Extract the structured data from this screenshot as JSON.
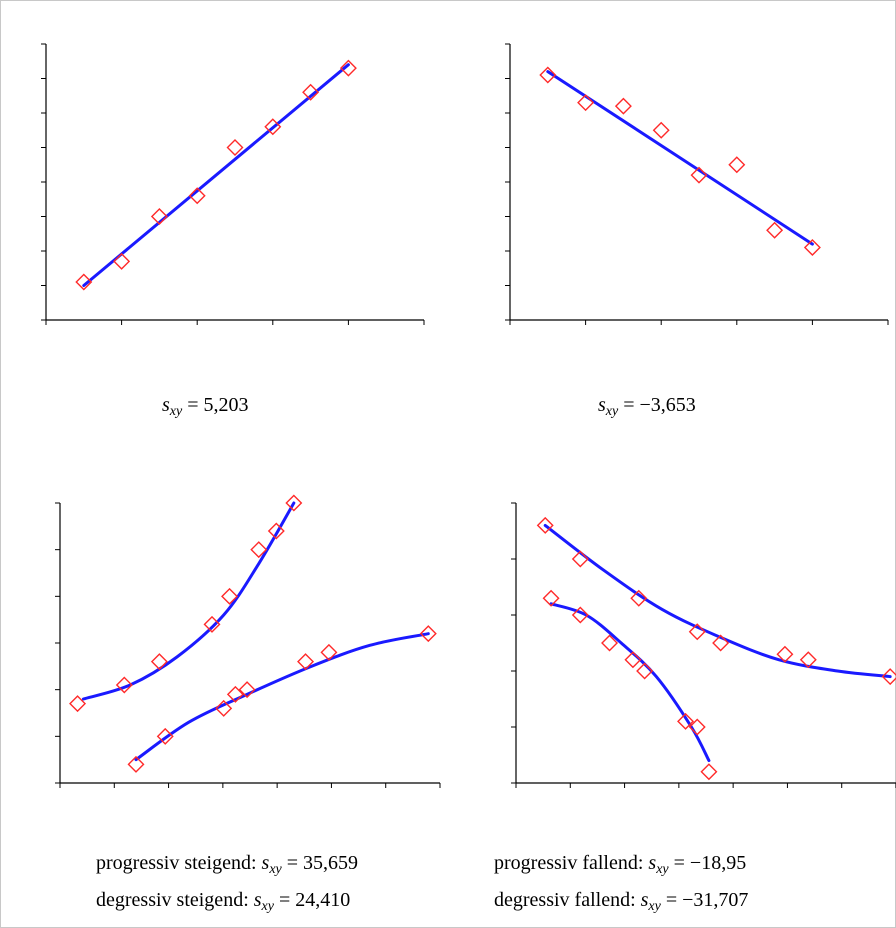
{
  "chart_data": [
    {
      "type": "scatter",
      "panel": "top-left",
      "fit_line": "linear",
      "x": [
        1,
        2,
        3,
        4,
        5,
        6,
        7,
        8
      ],
      "y": [
        1.1,
        1.7,
        3.0,
        3.6,
        5.0,
        5.6,
        6.6,
        7.3
      ],
      "fit": [
        [
          1,
          1.0
        ],
        [
          8,
          7.4
        ]
      ],
      "xlim": [
        0,
        10
      ],
      "ylim": [
        0,
        8
      ],
      "caption": {
        "symbol": "s",
        "sub": "xy",
        "value": "= 5,203"
      }
    },
    {
      "type": "scatter",
      "panel": "top-right",
      "fit_line": "linear",
      "x": [
        1,
        2,
        3,
        4,
        5,
        6,
        7,
        8
      ],
      "y": [
        7.1,
        6.3,
        6.2,
        5.5,
        4.2,
        4.5,
        2.6,
        2.1
      ],
      "fit": [
        [
          1,
          7.2
        ],
        [
          8,
          2.2
        ]
      ],
      "xlim": [
        0,
        10
      ],
      "ylim": [
        0,
        8
      ],
      "caption": {
        "symbol": "s",
        "sub": "xy",
        "value": "= −3,653"
      }
    },
    {
      "type": "scatter",
      "panel": "bottom-left",
      "fit_line": "curve",
      "series": [
        {
          "x": [
            0.3,
            1.1,
            1.7,
            2.6,
            2.9,
            3.4,
            3.7,
            4.0
          ],
          "y": [
            1.7,
            2.1,
            2.6,
            3.4,
            4.0,
            5.0,
            5.4,
            6.0
          ],
          "fit": [
            [
              0.4,
              1.8
            ],
            [
              1.2,
              2.1
            ],
            [
              2.0,
              2.7
            ],
            [
              2.8,
              3.6
            ],
            [
              3.4,
              4.7
            ],
            [
              4.0,
              6.0
            ]
          ]
        },
        {
          "x": [
            1.3,
            1.8,
            2.8,
            3.0,
            3.2,
            4.2,
            4.6,
            6.3
          ],
          "y": [
            0.4,
            1.0,
            1.6,
            1.9,
            2.0,
            2.6,
            2.8,
            3.2
          ],
          "fit": [
            [
              1.3,
              0.5
            ],
            [
              2.2,
              1.3
            ],
            [
              3.2,
              1.9
            ],
            [
              4.3,
              2.5
            ],
            [
              5.3,
              2.95
            ],
            [
              6.3,
              3.2
            ]
          ]
        }
      ],
      "xlim": [
        0,
        6.5
      ],
      "ylim": [
        0,
        6
      ],
      "captions": [
        {
          "prefix": "progressiv steigend:",
          "symbol": "s",
          "sub": "xy",
          "value": "= 35,659"
        },
        {
          "prefix": "degressiv steigend:",
          "symbol": "s",
          "sub": "xy",
          "value": "= 24,410"
        }
      ]
    },
    {
      "type": "scatter",
      "panel": "bottom-right",
      "fit_line": "curve",
      "series": [
        {
          "x": [
            0.5,
            1.1,
            2.1,
            3.1,
            3.5,
            4.6,
            5.0,
            6.4
          ],
          "y": [
            4.6,
            4.0,
            3.3,
            2.7,
            2.5,
            2.3,
            2.2,
            1.9
          ],
          "fit": [
            [
              0.5,
              4.6
            ],
            [
              1.5,
              3.8
            ],
            [
              2.5,
              3.1
            ],
            [
              3.5,
              2.6
            ],
            [
              4.5,
              2.2
            ],
            [
              5.5,
              2.0
            ],
            [
              6.4,
              1.9
            ]
          ]
        },
        {
          "x": [
            0.6,
            1.1,
            1.6,
            2.0,
            2.2,
            2.9,
            3.1,
            3.3
          ],
          "y": [
            3.3,
            3.0,
            2.5,
            2.2,
            2.0,
            1.1,
            1.0,
            0.2
          ],
          "fit": [
            [
              0.6,
              3.2
            ],
            [
              1.2,
              3.0
            ],
            [
              1.8,
              2.5
            ],
            [
              2.4,
              1.9
            ],
            [
              3.0,
              1.0
            ],
            [
              3.3,
              0.4
            ]
          ]
        }
      ],
      "xlim": [
        0,
        6.5
      ],
      "ylim": [
        0,
        5
      ],
      "captions": [
        {
          "prefix": "progressiv fallend:",
          "symbol": "s",
          "sub": "xy",
          "value": "= −18,95"
        },
        {
          "prefix": "degressiv fallend:",
          "symbol": "s",
          "sub": "xy",
          "value": "= −31,707"
        }
      ]
    }
  ],
  "colors": {
    "marker": "#ff2a2a",
    "line": "#1a1aff",
    "axis": "#000000"
  }
}
